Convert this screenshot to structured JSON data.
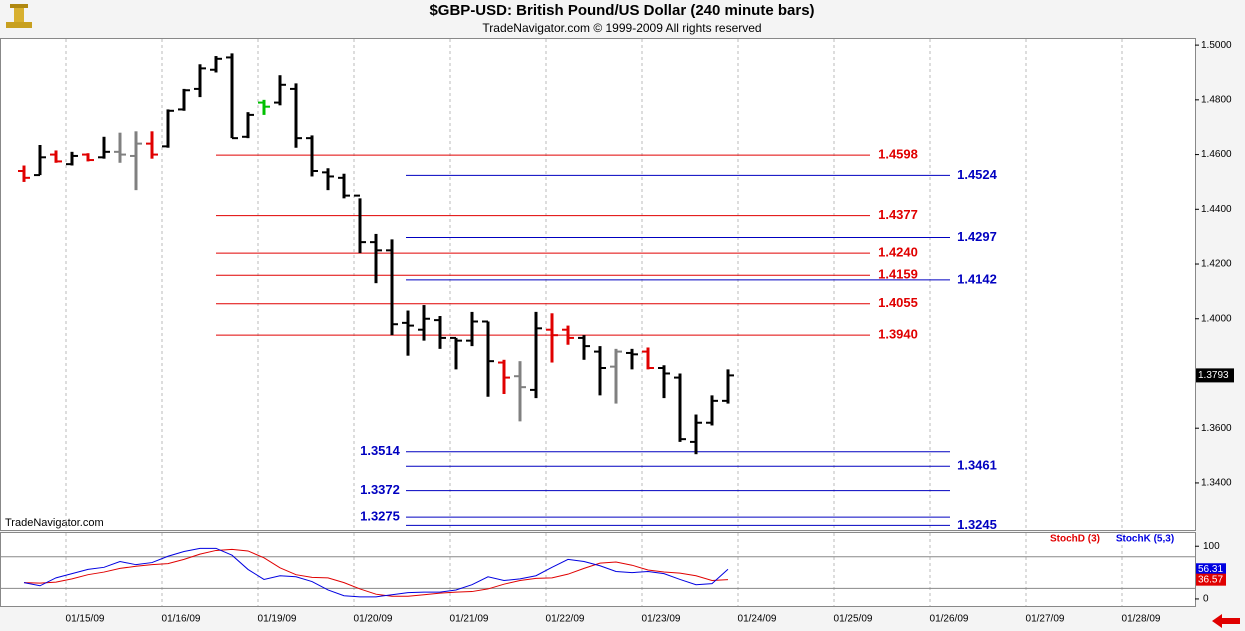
{
  "header": {
    "title": "$GBP-USD:  British Pound/US Dollar  (240 minute bars)",
    "subtitle": "TradeNavigator.com © 1999-2009 All rights reserved"
  },
  "watermark": "TradeNavigator.com",
  "chart_data": [
    {
      "type": "ohlc",
      "open": [
        1.454,
        1.4525,
        1.46,
        1.4565,
        1.46,
        1.459,
        1.461,
        1.4595,
        1.464,
        1.463,
        1.4765,
        1.484,
        1.491,
        1.4955,
        1.4665,
        1.479,
        1.479,
        1.484,
        1.466,
        1.4535,
        1.4515,
        1.445,
        1.428,
        1.425,
        1.3985,
        1.396,
        1.3995,
        1.393,
        1.392,
        1.399,
        1.384,
        1.379,
        1.374,
        1.396,
        1.396,
        1.393,
        1.388,
        1.3825,
        1.3875,
        1.388,
        1.382,
        1.3785,
        1.355,
        1.362,
        1.37
      ],
      "high": [
        1.456,
        1.4635,
        1.4615,
        1.461,
        1.4605,
        1.4665,
        1.468,
        1.4685,
        1.4685,
        1.4765,
        1.484,
        1.493,
        1.496,
        1.497,
        1.4755,
        1.48,
        1.489,
        1.486,
        1.467,
        1.455,
        1.453,
        1.444,
        1.431,
        1.429,
        1.403,
        1.405,
        1.401,
        1.393,
        1.4025,
        1.399,
        1.385,
        1.3845,
        1.4025,
        1.402,
        1.3975,
        1.394,
        1.39,
        1.389,
        1.389,
        1.3895,
        1.383,
        1.38,
        1.365,
        1.372,
        1.3815
      ],
      "low": [
        1.45,
        1.4525,
        1.457,
        1.456,
        1.4575,
        1.4585,
        1.457,
        1.447,
        1.4585,
        1.4625,
        1.476,
        1.481,
        1.49,
        1.466,
        1.466,
        1.4745,
        1.478,
        1.4625,
        1.452,
        1.447,
        1.444,
        1.424,
        1.413,
        1.394,
        1.3865,
        1.392,
        1.389,
        1.3815,
        1.39,
        1.3715,
        1.3725,
        1.3625,
        1.371,
        1.384,
        1.3905,
        1.385,
        1.372,
        1.369,
        1.3815,
        1.3815,
        1.371,
        1.355,
        1.3505,
        1.361,
        1.369
      ],
      "close": [
        1.4515,
        1.459,
        1.4575,
        1.4595,
        1.458,
        1.461,
        1.46,
        1.464,
        1.46,
        1.476,
        1.4835,
        1.4915,
        1.495,
        1.466,
        1.4745,
        1.4775,
        1.4855,
        1.466,
        1.454,
        1.452,
        1.445,
        1.428,
        1.425,
        1.398,
        1.3975,
        1.4,
        1.393,
        1.392,
        1.399,
        1.3845,
        1.3785,
        1.375,
        1.3965,
        1.394,
        1.393,
        1.39,
        1.382,
        1.388,
        1.387,
        1.382,
        1.38,
        1.356,
        1.362,
        1.37,
        1.3793
      ],
      "colors": [
        "#e00000",
        "#000000",
        "#e00000",
        "#000000",
        "#e00000",
        "#000000",
        "#808080",
        "#808080",
        "#e00000",
        "#000000",
        "#000000",
        "#000000",
        "#000000",
        "#000000",
        "#000000",
        "#00c000",
        "#000000",
        "#000000",
        "#000000",
        "#000000",
        "#000000",
        "#000000",
        "#000000",
        "#000000",
        "#000000",
        "#000000",
        "#000000",
        "#000000",
        "#000000",
        "#000000",
        "#e00000",
        "#808080",
        "#000000",
        "#e00000",
        "#e00000",
        "#000000",
        "#000000",
        "#808080",
        "#000000",
        "#e00000",
        "#000000",
        "#000000",
        "#000000",
        "#000000",
        "#000000"
      ],
      "ylim": [
        1.3228,
        1.5026
      ],
      "yticks": [
        {
          "value": 1.5,
          "label": "1.5000"
        },
        {
          "value": 1.48,
          "label": "1.4800"
        },
        {
          "value": 1.46,
          "label": "1.4600"
        },
        {
          "value": 1.44,
          "label": "1.4400"
        },
        {
          "value": 1.42,
          "label": "1.4200"
        },
        {
          "value": 1.4,
          "label": "1.4000"
        },
        {
          "value": 1.36,
          "label": "1.3600"
        },
        {
          "value": 1.34,
          "label": "1.3400"
        }
      ],
      "levels": [
        {
          "color": "#e00000",
          "values": [
            1.4598,
            1.4377,
            1.424,
            1.4159,
            1.4055,
            1.394
          ],
          "value_labels": [
            "1.4598",
            "1.4377",
            "1.4240",
            "1.4159",
            "1.4055",
            "1.3940"
          ]
        },
        {
          "color": "#0000c0",
          "values": [
            1.4524,
            1.4297,
            1.4142,
            1.3461,
            1.3245
          ],
          "value_labels": [
            "1.4524",
            "1.4297",
            "1.4142",
            "1.3461",
            "1.3245"
          ]
        },
        {
          "color": "#0000c0",
          "values": [
            1.3514,
            1.3372,
            1.3275
          ],
          "value_labels": [
            "1.3514",
            "1.3372",
            "1.3275"
          ]
        }
      ]
    },
    {
      "type": "line",
      "series": [
        {
          "name": "StochD (3)",
          "color": "#e00000",
          "values": [
            31,
            30,
            32,
            38,
            46,
            51,
            58,
            62,
            65,
            67,
            75,
            85,
            92,
            94,
            91,
            78,
            59,
            46,
            41,
            40,
            31,
            19,
            9,
            5,
            5,
            8,
            11,
            13,
            14,
            19,
            28,
            35,
            39,
            40,
            47,
            58,
            68,
            70,
            64,
            55,
            51,
            49,
            44,
            35,
            36.57
          ]
        },
        {
          "name": "StochK (5,3)",
          "color": "#0000e0",
          "values": [
            31,
            25,
            40,
            48,
            56,
            60,
            71,
            65,
            69,
            81,
            90,
            96,
            96,
            83,
            56,
            37,
            44,
            42,
            33,
            17,
            6,
            4,
            4,
            8,
            12,
            13,
            13,
            17,
            27,
            42,
            35,
            38,
            44,
            60,
            75,
            71,
            63,
            52,
            50,
            52,
            48,
            37,
            27,
            29,
            56.31
          ]
        }
      ],
      "ylim": [
        -11.5,
        127
      ],
      "yticks": [
        100,
        0
      ],
      "reference_lines": [
        80,
        20
      ],
      "xticks": [
        "01/15/09",
        "01/16/09",
        "01/19/09",
        "01/20/09",
        "01/21/09",
        "01/22/09",
        "01/23/09",
        "01/24/09",
        "01/25/09",
        "01/26/09",
        "01/27/09",
        "01/28/09"
      ]
    }
  ]
}
